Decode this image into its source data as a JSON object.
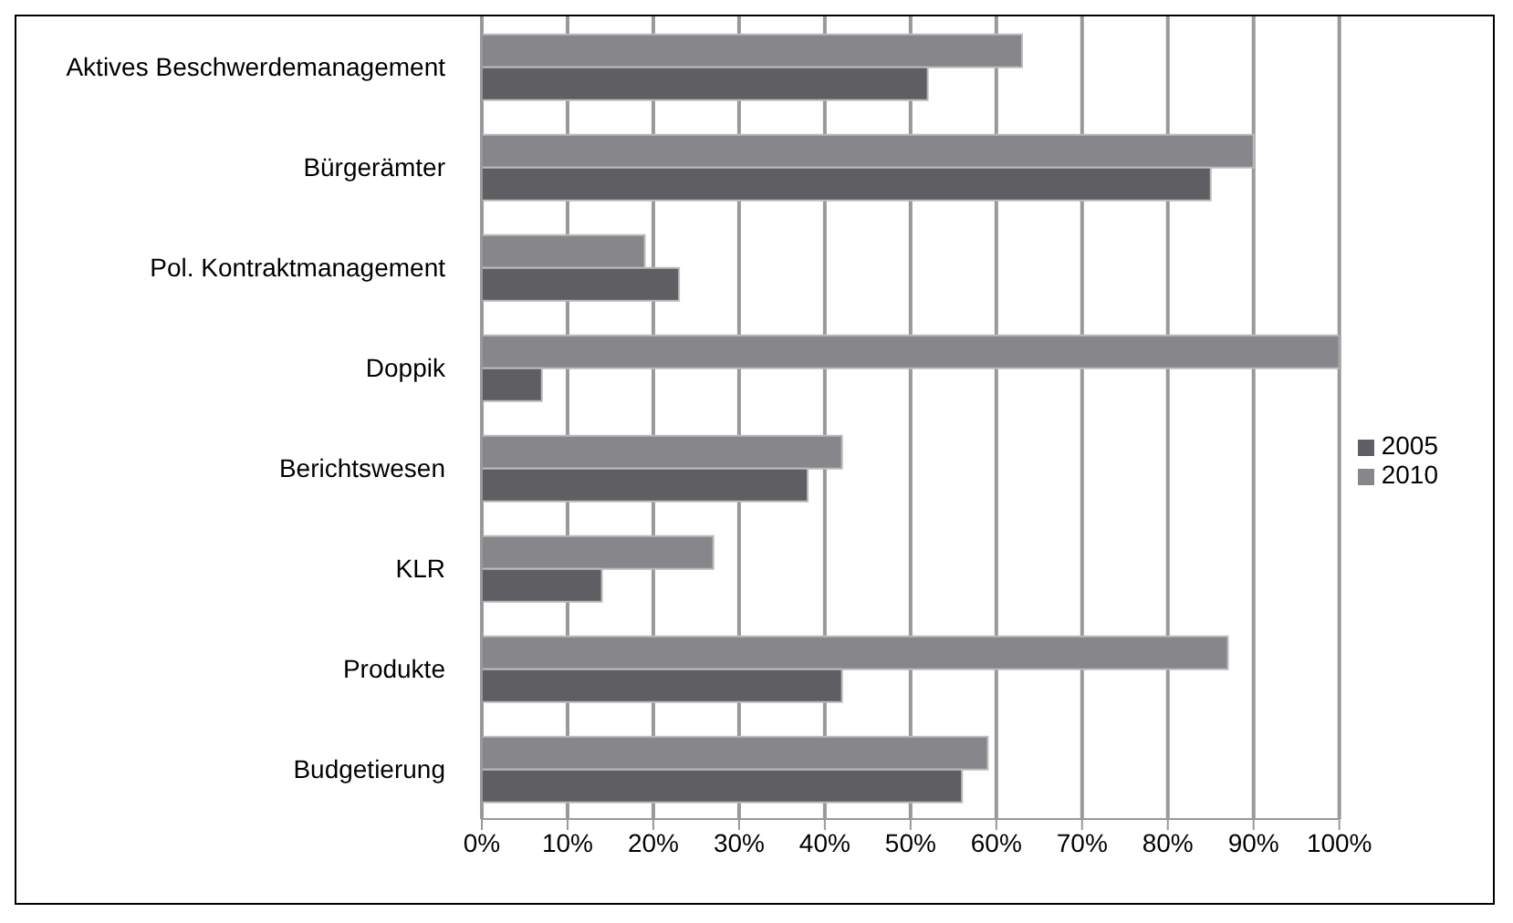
{
  "chart_data": {
    "type": "bar",
    "orientation": "horizontal",
    "categories": [
      "Aktives Beschwerdemanagement",
      "Bürgerämter",
      "Pol. Kontraktmanagement",
      "Doppik",
      "Berichtswesen",
      "KLR",
      "Produkte",
      "Budgetierung"
    ],
    "series": [
      {
        "name": "2010",
        "color": "#87868b",
        "values": [
          63,
          90,
          19,
          100,
          42,
          27,
          87,
          59
        ]
      },
      {
        "name": "2005",
        "color": "#5f5f63",
        "values": [
          52,
          85,
          23,
          7,
          38,
          14,
          42,
          56
        ]
      }
    ],
    "xlim": [
      0,
      100
    ],
    "xticks": [
      {
        "value": 0,
        "label": "0%"
      },
      {
        "value": 10,
        "label": "10%"
      },
      {
        "value": 20,
        "label": "20%"
      },
      {
        "value": 30,
        "label": "30%"
      },
      {
        "value": 40,
        "label": "40%"
      },
      {
        "value": 50,
        "label": "50%"
      },
      {
        "value": 60,
        "label": "60%"
      },
      {
        "value": 70,
        "label": "70%"
      },
      {
        "value": 80,
        "label": "80%"
      },
      {
        "value": 90,
        "label": "90%"
      },
      {
        "value": 100,
        "label": "100%"
      }
    ],
    "grid": "x",
    "legend": "right"
  }
}
